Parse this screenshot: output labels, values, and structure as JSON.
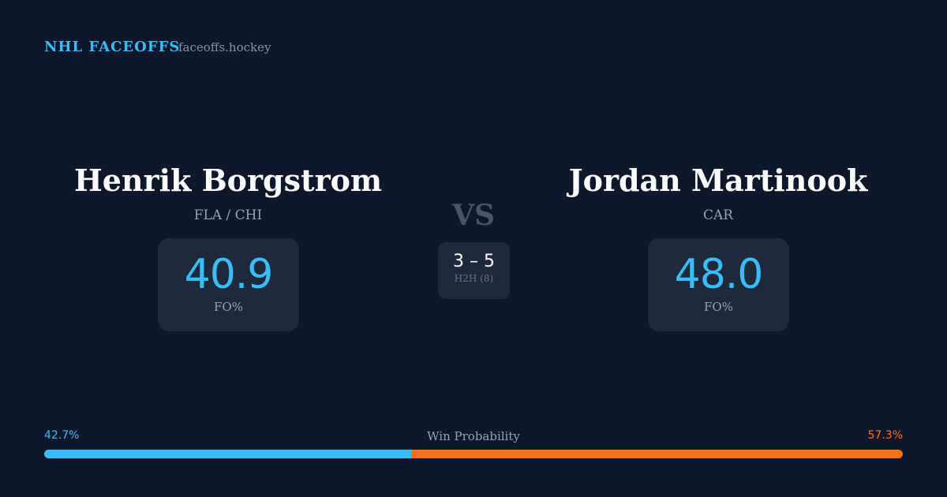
{
  "header": {
    "brand": "NHL FACEOFFS",
    "site": "faceoffs.hockey"
  },
  "players": [
    {
      "name": "Henrik Borgstrom",
      "team": "FLA / CHI",
      "fo_pct": "40.9",
      "fo_label": "FO%"
    },
    {
      "name": "Jordan Martinook",
      "team": "CAR",
      "fo_pct": "48.0",
      "fo_label": "FO%"
    }
  ],
  "versus": {
    "label": "VS",
    "h2h_score": "3 – 5",
    "h2h_label": "H2H (8)"
  },
  "win_probability": {
    "label": "Win Probability",
    "left": {
      "value": 42.7,
      "label": "42.7%",
      "color": "#38bdf8"
    },
    "right": {
      "value": 57.3,
      "label": "57.3%",
      "color": "#f97316"
    }
  }
}
